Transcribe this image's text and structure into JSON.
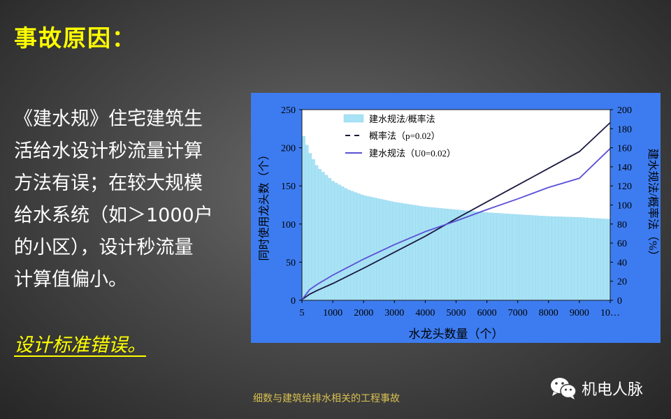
{
  "slide": {
    "title": "事故原因：",
    "body_lines": [
      "《建水规》住宅建筑生",
      "活给水设计秒流量计算",
      "方法有误；在较大规模",
      "给水系统（如＞1000户",
      "的小区），设计秒流量",
      "计算值偏小。"
    ],
    "emphasis": "设计标准错误。",
    "footer": "细数与建筑给排水相关的工程事故",
    "brand": "机电人脉"
  },
  "colors": {
    "panel_bg": "#3d7cf0",
    "plot_bg": "#ffffff",
    "bar": "#a8e2f5",
    "line_probability": "#1a1a40",
    "line_code": "#5a4fd6",
    "title": "#ffff00",
    "body": "#ffffff"
  },
  "chart_data": {
    "type": "line",
    "xlabel": "水龙头数量（个）",
    "ylabel_left": "同时使用龙头数（个）",
    "ylabel_right": "建水规法/概率法（%）",
    "x_ticks": [
      "5",
      "1000",
      "2000",
      "3000",
      "4000",
      "5000",
      "6000",
      "7000",
      "8000",
      "9000",
      "10…"
    ],
    "xlim": [
      0,
      10000
    ],
    "ylim_left": [
      0,
      250
    ],
    "ylim_right": [
      0,
      200
    ],
    "y_ticks_left": [
      0,
      50,
      100,
      150,
      200,
      250
    ],
    "y_ticks_right": [
      0,
      20,
      40,
      60,
      80,
      100,
      120,
      140,
      160,
      180,
      200
    ],
    "legend": {
      "position": "top-left"
    },
    "series": [
      {
        "name": "建水规法/概率法",
        "kind": "bar",
        "axis": "right",
        "x": [
          5,
          250,
          500,
          1000,
          1500,
          2000,
          3000,
          4000,
          5000,
          6000,
          7000,
          8000,
          9000,
          10000
        ],
        "y": [
          176,
          155,
          140,
          125,
          116,
          110,
          103,
          98,
          95,
          92,
          90,
          88,
          87,
          85
        ]
      },
      {
        "name": "概率法（p=0.02）",
        "kind": "line",
        "dash": true,
        "axis": "left",
        "x": [
          5,
          250,
          500,
          1000,
          2000,
          3000,
          4000,
          5000,
          6000,
          7000,
          8000,
          9000,
          10000
        ],
        "y": [
          1,
          8,
          13,
          22,
          42,
          63,
          84,
          107,
          129,
          151,
          173,
          195,
          233
        ]
      },
      {
        "name": "建水规法（U0=0.02）",
        "kind": "line",
        "dash": false,
        "axis": "left",
        "x": [
          5,
          250,
          500,
          1000,
          2000,
          3000,
          4000,
          5000,
          6000,
          7000,
          8000,
          9000,
          10000
        ],
        "y": [
          1,
          14,
          21,
          33,
          54,
          73,
          90,
          104,
          119,
          133,
          148,
          160,
          199
        ]
      }
    ]
  }
}
